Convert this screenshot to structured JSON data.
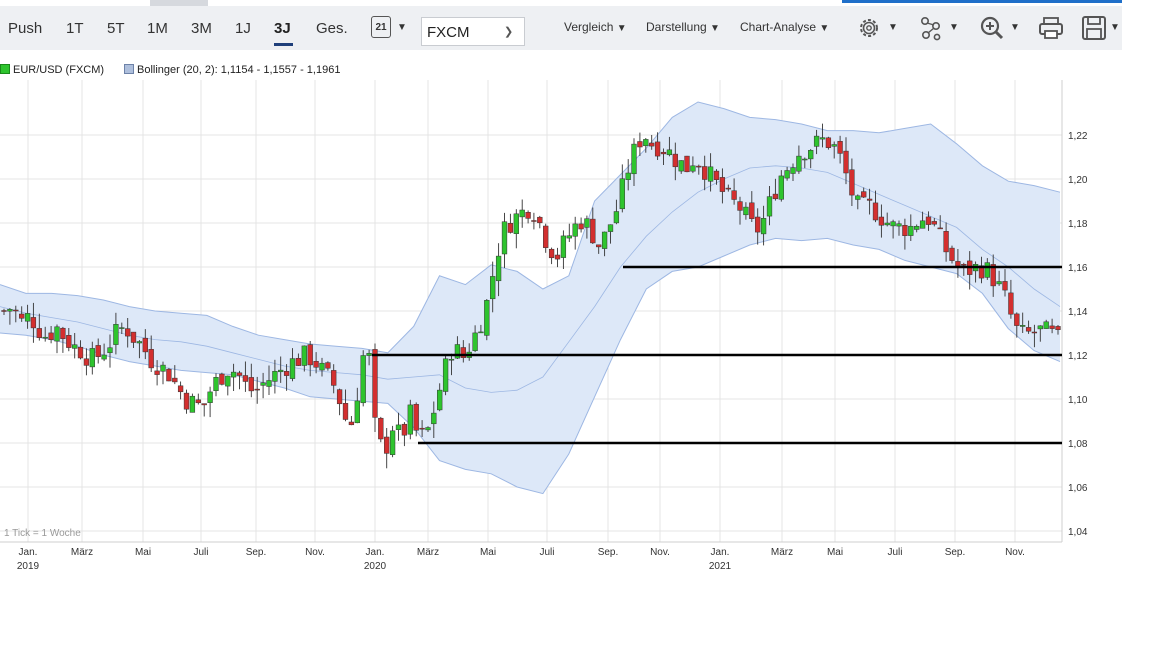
{
  "toolbar": {
    "ranges": [
      "Push",
      "1T",
      "5T",
      "1M",
      "3M",
      "1J",
      "3J",
      "Ges."
    ],
    "active_range": "3J",
    "calendar_day": "21",
    "instrument_select": "FXCM",
    "menus": [
      "Vergleich",
      "Darstellung",
      "Chart-Analyse"
    ],
    "icons": [
      "settings-icon",
      "indicator-icon",
      "zoom-icon",
      "print-icon",
      "save-icon"
    ]
  },
  "legend": {
    "series_label": "EUR/USD (FXCM)",
    "bollinger_label": "Bollinger (20, 2): 1,1154 - 1,1557 - 1,1961"
  },
  "colors": {
    "up": "#2ec42e",
    "down": "#d32f2f",
    "band_fill": "#dde8f8",
    "band_line": "#9db7e3",
    "grid": "#e4e4e4",
    "toolbar_bg": "#eef0f3",
    "accent": "#1f6fc9"
  },
  "footnote": "1 Tick = 1 Woche",
  "chart_data": {
    "type": "candlestick",
    "title": "",
    "xlabel": "",
    "ylabel": "",
    "ylim": [
      1.035,
      1.245
    ],
    "y_ticks": [
      "1,04",
      "1,06",
      "1,08",
      "1,10",
      "1,12",
      "1,14",
      "1,16",
      "1,18",
      "1,20",
      "1,22"
    ],
    "x_ticks": [
      {
        "label": "Jan.",
        "year": "2019"
      },
      {
        "label": "März",
        "year": ""
      },
      {
        "label": "Mai",
        "year": ""
      },
      {
        "label": "Juli",
        "year": ""
      },
      {
        "label": "Sep.",
        "year": ""
      },
      {
        "label": "Nov.",
        "year": ""
      },
      {
        "label": "Jan.",
        "year": "2020"
      },
      {
        "label": "März",
        "year": ""
      },
      {
        "label": "Mai",
        "year": ""
      },
      {
        "label": "Juli",
        "year": ""
      },
      {
        "label": "Sep.",
        "year": ""
      },
      {
        "label": "Nov.",
        "year": ""
      },
      {
        "label": "Jan.",
        "year": "2021"
      },
      {
        "label": "März",
        "year": ""
      },
      {
        "label": "Mai",
        "year": ""
      },
      {
        "label": "Juli",
        "year": ""
      },
      {
        "label": "Sep.",
        "year": ""
      },
      {
        "label": "Nov.",
        "year": ""
      }
    ],
    "close_path": [
      1.14,
      1.142,
      1.135,
      1.138,
      1.132,
      1.128,
      1.133,
      1.128,
      1.124,
      1.122,
      1.118,
      1.12,
      1.124,
      1.13,
      1.133,
      1.128,
      1.124,
      1.118,
      1.115,
      1.112,
      1.106,
      1.1,
      1.098,
      1.096,
      1.105,
      1.11,
      1.114,
      1.112,
      1.106,
      1.103,
      1.107,
      1.11,
      1.113,
      1.116,
      1.118,
      1.12,
      1.117,
      1.112,
      1.108,
      1.098,
      1.085,
      1.105,
      1.13,
      1.085,
      1.075,
      1.088,
      1.082,
      1.093,
      1.082,
      1.085,
      1.098,
      1.113,
      1.125,
      1.118,
      1.125,
      1.133,
      1.145,
      1.165,
      1.178,
      1.182,
      1.185,
      1.188,
      1.18,
      1.17,
      1.165,
      1.172,
      1.178,
      1.182,
      1.176,
      1.169,
      1.178,
      1.187,
      1.202,
      1.213,
      1.221,
      1.216,
      1.215,
      1.212,
      1.208,
      1.205,
      1.21,
      1.205,
      1.2,
      1.195,
      1.19,
      1.188,
      1.182,
      1.176,
      1.182,
      1.193,
      1.202,
      1.207,
      1.212,
      1.214,
      1.216,
      1.218,
      1.215,
      1.208,
      1.195,
      1.186,
      1.188,
      1.185,
      1.181,
      1.178,
      1.178,
      1.178,
      1.182,
      1.182,
      1.176,
      1.168,
      1.162,
      1.158,
      1.159,
      1.16,
      1.158,
      1.152,
      1.145,
      1.132,
      1.129,
      1.13,
      1.131,
      1.13,
      1.127
    ],
    "bollinger": {
      "upper": [
        1.152,
        1.148,
        1.148,
        1.147,
        1.145,
        1.142,
        1.14,
        1.139,
        1.138,
        1.133,
        1.129,
        1.127,
        1.125,
        1.124,
        1.123,
        1.121,
        1.133,
        1.156,
        1.152,
        1.161,
        1.158,
        1.15,
        1.156,
        1.19,
        1.202,
        1.214,
        1.228,
        1.235,
        1.232,
        1.228,
        1.227,
        1.225,
        1.222,
        1.222,
        1.221,
        1.223,
        1.225,
        1.216,
        1.206,
        1.199,
        1.197,
        1.194
      ],
      "middle": [
        1.142,
        1.139,
        1.137,
        1.135,
        1.132,
        1.129,
        1.127,
        1.126,
        1.124,
        1.121,
        1.118,
        1.115,
        1.113,
        1.112,
        1.111,
        1.109,
        1.11,
        1.111,
        1.105,
        1.103,
        1.104,
        1.11,
        1.126,
        1.142,
        1.16,
        1.174,
        1.185,
        1.194,
        1.2,
        1.205,
        1.206,
        1.205,
        1.203,
        1.198,
        1.193,
        1.188,
        1.183,
        1.178,
        1.168,
        1.16,
        1.15,
        1.142
      ],
      "lower": [
        1.13,
        1.129,
        1.127,
        1.124,
        1.12,
        1.117,
        1.115,
        1.113,
        1.112,
        1.111,
        1.108,
        1.105,
        1.101,
        1.1,
        1.099,
        1.098,
        1.087,
        1.072,
        1.068,
        1.066,
        1.06,
        1.057,
        1.075,
        1.101,
        1.127,
        1.15,
        1.158,
        1.16,
        1.165,
        1.17,
        1.173,
        1.172,
        1.173,
        1.17,
        1.168,
        1.163,
        1.16,
        1.157,
        1.148,
        1.132,
        1.122,
        1.117
      ]
    },
    "horizontal_lines": [
      {
        "y": 1.16,
        "from": "Sep. 2020",
        "to": "Dez. 2021"
      },
      {
        "y": 1.12,
        "from": "Dez. 2019",
        "to": "Dez. 2021"
      },
      {
        "y": 1.08,
        "from": "Feb. 2020",
        "to": "Dez. 2021"
      }
    ]
  }
}
